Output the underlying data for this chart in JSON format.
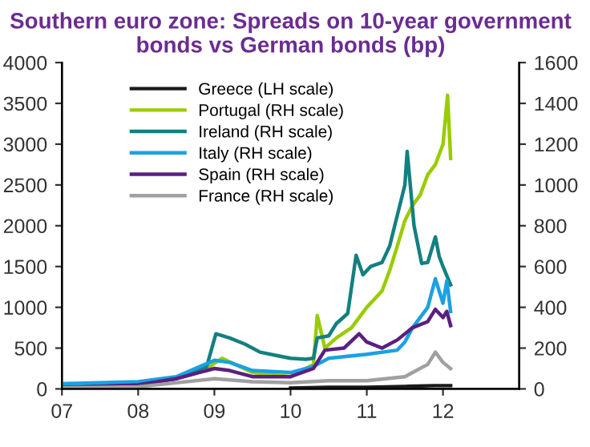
{
  "chart_data": {
    "type": "line",
    "title": "Southern euro zone: Spreads on 10-year government bonds vs German bonds (bp)",
    "xlim": [
      2007,
      2013
    ],
    "xticks": [
      {
        "value": 2007,
        "label": "07"
      },
      {
        "value": 2008,
        "label": "08"
      },
      {
        "value": 2009,
        "label": "09"
      },
      {
        "value": 2010,
        "label": "10"
      },
      {
        "value": 2011,
        "label": "11"
      },
      {
        "value": 2012,
        "label": "12"
      }
    ],
    "ylim": [
      0,
      4000
    ],
    "yticks": [
      0,
      500,
      1000,
      1500,
      2000,
      2500,
      3000,
      3500,
      4000
    ],
    "y2lim": [
      0,
      1600
    ],
    "y2ticks": [
      0,
      200,
      400,
      600,
      800,
      1000,
      1200,
      1400,
      1600
    ],
    "grid": false,
    "legend": "top left",
    "marker": "none",
    "line_style": "solid",
    "series": [
      {
        "name": "Greece (LH scale)",
        "color": "#1a1a1a",
        "x": [
          2010.0,
          2010.5,
          2011.0,
          2011.5,
          2011.9,
          2012.1
        ],
        "values": [
          10,
          20,
          20,
          30,
          40,
          40
        ]
      },
      {
        "name": "Portugal (RH scale)",
        "color": "#99cc00",
        "axis": "y2",
        "x": [
          2008.9,
          2009.1,
          2009.5,
          2010.0,
          2010.3,
          2010.35,
          2010.45,
          2010.6,
          2010.8,
          2011.0,
          2011.2,
          2011.3,
          2011.4,
          2011.5,
          2011.6,
          2011.7,
          2011.8,
          2011.9,
          2012.0,
          2012.06,
          2012.1
        ],
        "values": [
          100,
          150,
          80,
          60,
          120,
          360,
          200,
          250,
          300,
          400,
          480,
          580,
          700,
          825,
          900,
          950,
          1050,
          1100,
          1200,
          1440,
          1130
        ]
      },
      {
        "name": "Ireland (RH scale)",
        "color": "#138080",
        "axis": "y2",
        "x": [
          2007.0,
          2007.5,
          2008.0,
          2008.5,
          2008.9,
          2009.02,
          2009.2,
          2009.4,
          2009.6,
          2009.8,
          2010.0,
          2010.2,
          2010.3,
          2010.35,
          2010.5,
          2010.6,
          2010.75,
          2010.86,
          2010.95,
          2011.05,
          2011.2,
          2011.3,
          2011.4,
          2011.5,
          2011.53,
          2011.62,
          2011.72,
          2011.8,
          2011.9,
          2011.95,
          2012.0,
          2012.1
        ],
        "values": [
          10,
          15,
          25,
          50,
          110,
          270,
          250,
          220,
          180,
          165,
          150,
          145,
          150,
          250,
          260,
          320,
          370,
          655,
          560,
          600,
          620,
          700,
          850,
          1000,
          1165,
          800,
          615,
          620,
          745,
          650,
          600,
          510
        ]
      },
      {
        "name": "Italy (RH scale)",
        "color": "#1ba1e2",
        "axis": "y2",
        "x": [
          2007.0,
          2008.0,
          2008.5,
          2009.0,
          2009.2,
          2009.5,
          2010.0,
          2010.3,
          2010.5,
          2011.0,
          2011.4,
          2011.5,
          2011.6,
          2011.8,
          2011.9,
          2012.0,
          2012.05,
          2012.1
        ],
        "values": [
          25,
          35,
          60,
          140,
          130,
          90,
          80,
          110,
          150,
          170,
          190,
          230,
          300,
          400,
          540,
          420,
          530,
          380
        ]
      },
      {
        "name": "Spain (RH scale)",
        "color": "#5b1f80",
        "axis": "y2",
        "x": [
          2007.0,
          2008.0,
          2008.5,
          2009.0,
          2009.2,
          2009.5,
          2010.0,
          2010.3,
          2010.45,
          2010.7,
          2010.9,
          2011.0,
          2011.2,
          2011.4,
          2011.6,
          2011.8,
          2011.9,
          2012.0,
          2012.05,
          2012.1
        ],
        "values": [
          5,
          20,
          50,
          100,
          90,
          60,
          60,
          100,
          190,
          200,
          270,
          230,
          200,
          240,
          300,
          330,
          390,
          350,
          380,
          310
        ]
      },
      {
        "name": "France (RH scale)",
        "color": "#a0a0a0",
        "axis": "y2",
        "x": [
          2007.0,
          2008.0,
          2009.0,
          2009.5,
          2010.0,
          2010.5,
          2011.0,
          2011.5,
          2011.8,
          2011.9,
          2012.0,
          2012.1
        ],
        "values": [
          5,
          10,
          50,
          35,
          30,
          40,
          40,
          60,
          120,
          180,
          130,
          100
        ]
      }
    ]
  }
}
